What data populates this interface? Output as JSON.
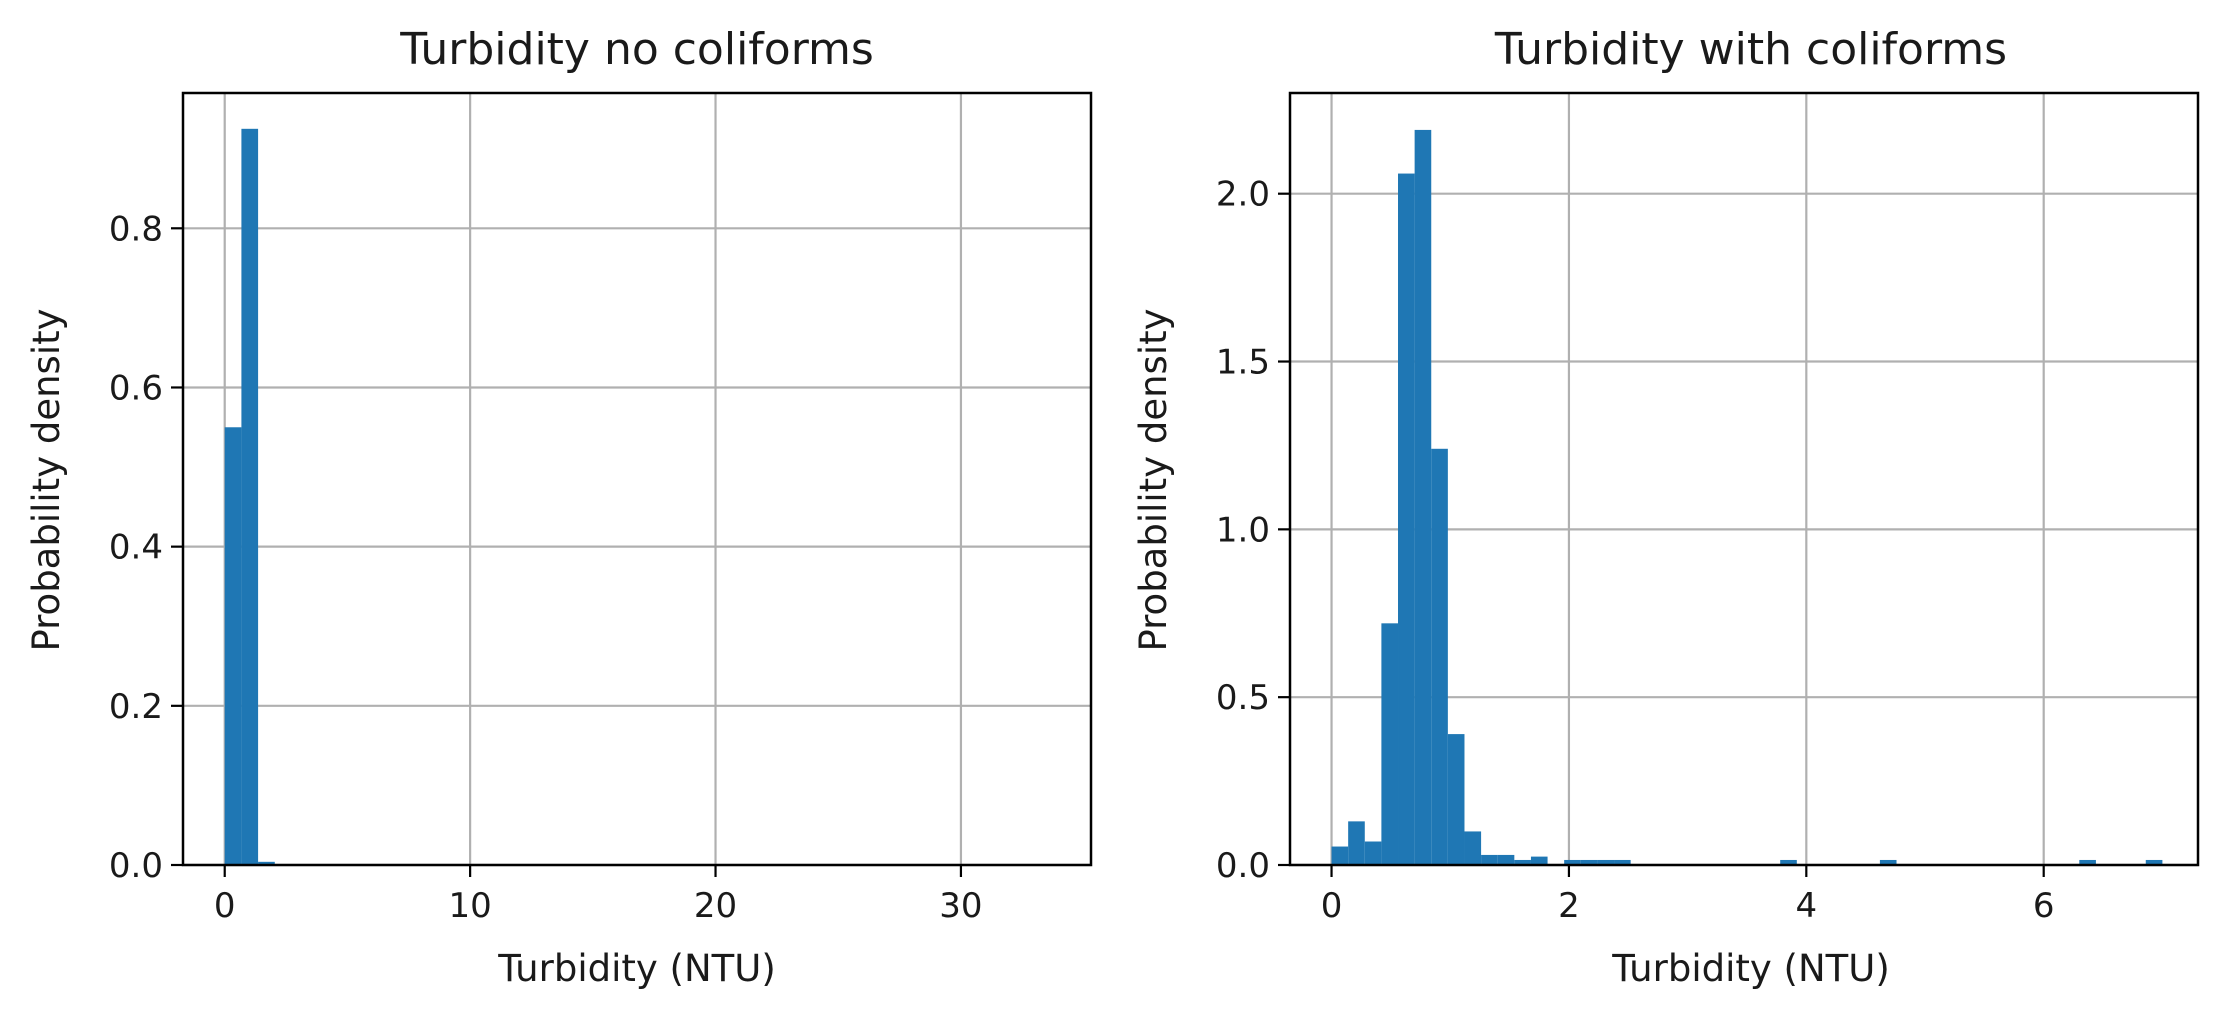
{
  "chart_data": [
    {
      "type": "bar",
      "title": "Turbidity no coliforms",
      "xlabel": "Turbidity (NTU)",
      "ylabel": "Probability density",
      "xlim": [
        -1.7,
        35.3
      ],
      "ylim": [
        0,
        0.97
      ],
      "xticks": [
        0,
        10,
        20,
        30
      ],
      "yticks": [
        0.0,
        0.2,
        0.4,
        0.6,
        0.8
      ],
      "grid": true,
      "color": "#1f77b4",
      "bins": [
        {
          "x0": 0.0,
          "x1": 0.68,
          "value": 0.55
        },
        {
          "x0": 0.68,
          "x1": 1.36,
          "value": 0.925
        },
        {
          "x0": 1.36,
          "x1": 2.04,
          "value": 0.004
        }
      ]
    },
    {
      "type": "bar",
      "title": "Turbidity with coliforms",
      "xlabel": "Turbidity (NTU)",
      "ylabel": "Probability density",
      "xlim": [
        -0.35,
        7.3
      ],
      "ylim": [
        0,
        2.3
      ],
      "xticks": [
        0,
        2,
        4,
        6
      ],
      "yticks": [
        0.0,
        0.5,
        1.0,
        1.5,
        2.0
      ],
      "grid": true,
      "color": "#1f77b4",
      "bins": [
        {
          "x0": 0.0,
          "x1": 0.14,
          "value": 0.055
        },
        {
          "x0": 0.14,
          "x1": 0.28,
          "value": 0.13
        },
        {
          "x0": 0.28,
          "x1": 0.42,
          "value": 0.07
        },
        {
          "x0": 0.42,
          "x1": 0.56,
          "value": 0.72
        },
        {
          "x0": 0.56,
          "x1": 0.7,
          "value": 2.06
        },
        {
          "x0": 0.7,
          "x1": 0.84,
          "value": 2.19
        },
        {
          "x0": 0.84,
          "x1": 0.98,
          "value": 1.24
        },
        {
          "x0": 0.98,
          "x1": 1.12,
          "value": 0.39
        },
        {
          "x0": 1.12,
          "x1": 1.26,
          "value": 0.1
        },
        {
          "x0": 1.26,
          "x1": 1.4,
          "value": 0.03
        },
        {
          "x0": 1.4,
          "x1": 1.54,
          "value": 0.03
        },
        {
          "x0": 1.54,
          "x1": 1.68,
          "value": 0.015
        },
        {
          "x0": 1.68,
          "x1": 1.82,
          "value": 0.025
        },
        {
          "x0": 1.96,
          "x1": 2.1,
          "value": 0.015
        },
        {
          "x0": 2.1,
          "x1": 2.24,
          "value": 0.015
        },
        {
          "x0": 2.24,
          "x1": 2.38,
          "value": 0.015
        },
        {
          "x0": 2.38,
          "x1": 2.52,
          "value": 0.015
        },
        {
          "x0": 3.78,
          "x1": 3.92,
          "value": 0.015
        },
        {
          "x0": 4.62,
          "x1": 4.76,
          "value": 0.015
        },
        {
          "x0": 6.3,
          "x1": 6.44,
          "value": 0.015
        },
        {
          "x0": 6.86,
          "x1": 7.0,
          "value": 0.015
        }
      ]
    }
  ]
}
